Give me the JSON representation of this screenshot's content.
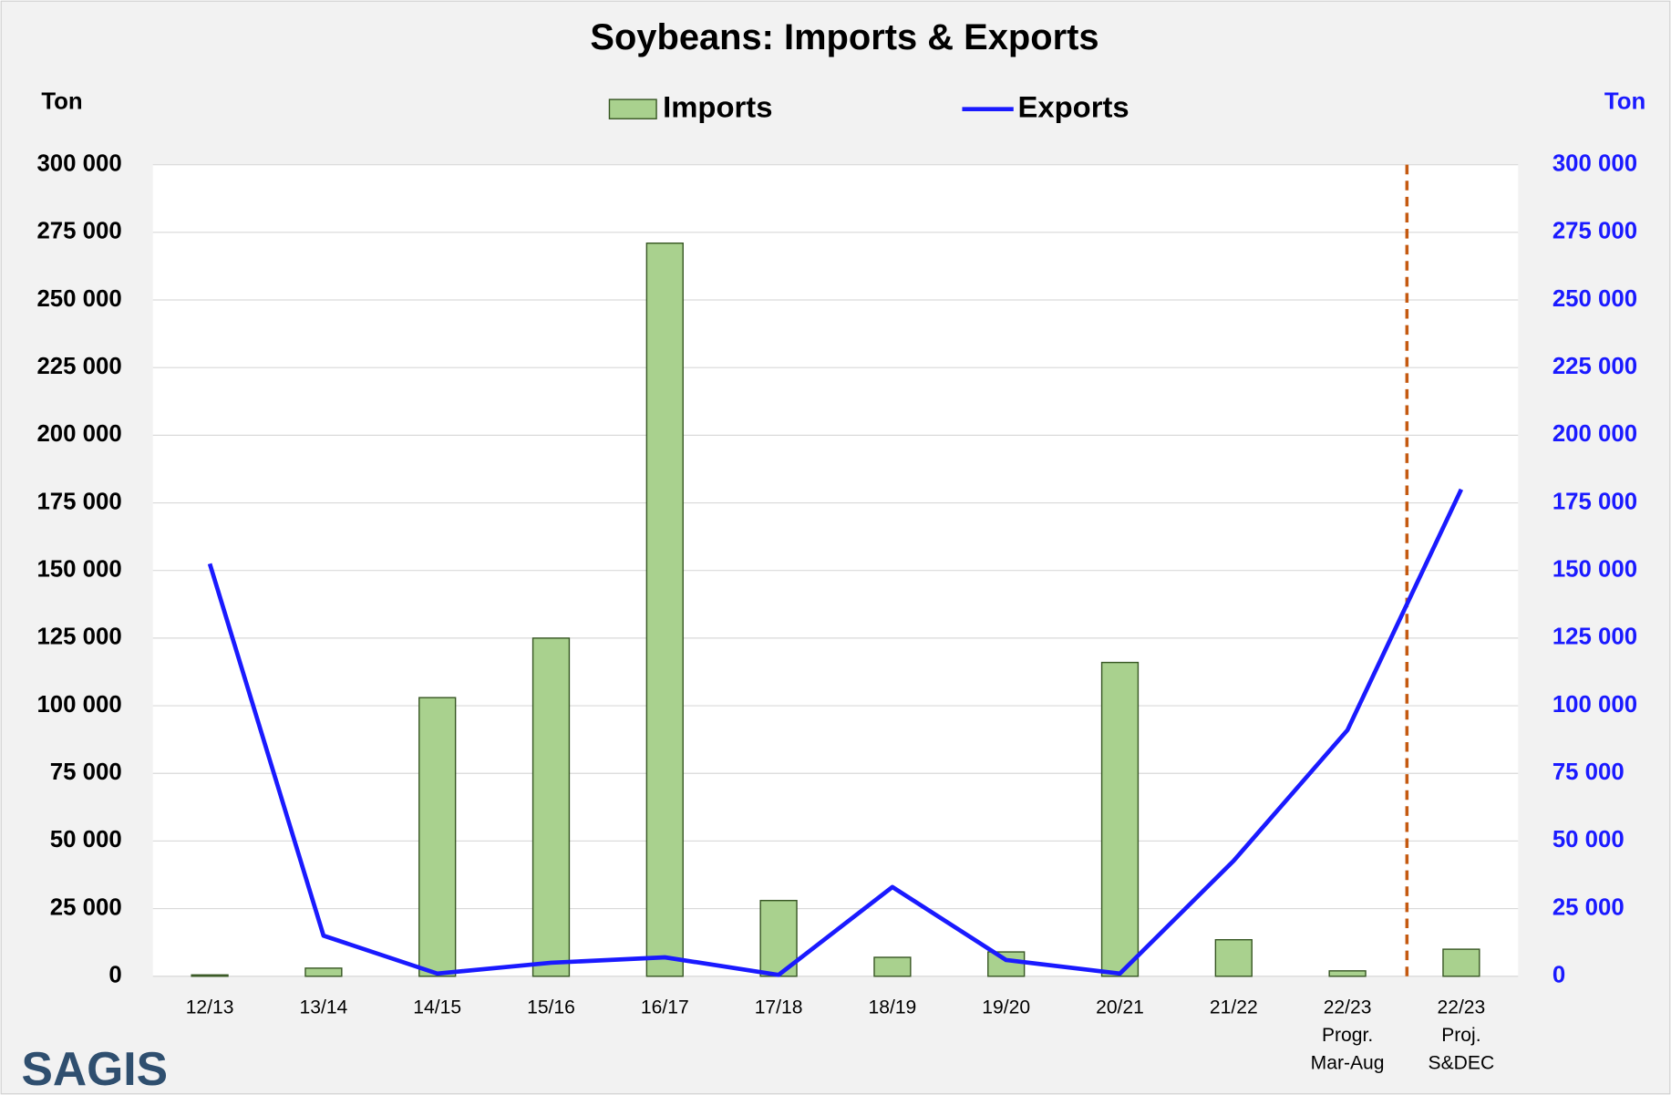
{
  "chart_data": {
    "type": "bar_line",
    "title": "Soybeans: Imports & Exports",
    "ylabel": "Ton",
    "y2label": "Ton",
    "categories": [
      "12/13",
      "13/14",
      "14/15",
      "15/16",
      "16/17",
      "17/18",
      "18/19",
      "19/20",
      "20/21",
      "21/22",
      [
        "22/23",
        "Progr.",
        "Mar-Aug"
      ],
      [
        "22/23",
        "Proj.",
        "S&DEC"
      ]
    ],
    "series": [
      {
        "name": "Imports",
        "type": "bar",
        "color": "#a9d18e",
        "values": [
          500,
          3000,
          103000,
          125000,
          271000,
          28000,
          7000,
          9000,
          116000,
          13500,
          2000,
          10000
        ]
      },
      {
        "name": "Exports",
        "type": "line",
        "axis": "y2",
        "color": "#1a1aff",
        "values": [
          152500,
          15000,
          1000,
          5000,
          7000,
          500,
          33000,
          6000,
          1000,
          42700,
          91000,
          180000
        ]
      }
    ],
    "ylim": [
      0,
      300000
    ],
    "yticks": [
      0,
      {
        "value": 25000,
        "label": "25 000"
      },
      {
        "value": 50000,
        "label": "50 000"
      },
      {
        "value": 75000,
        "label": "75 000"
      },
      {
        "value": 100000,
        "label": "100 000"
      },
      {
        "value": 125000,
        "label": "125 000"
      },
      {
        "value": 150000,
        "label": "150 000"
      },
      {
        "value": 175000,
        "label": "175 000"
      },
      {
        "value": 200000,
        "label": "200 000"
      },
      {
        "value": 225000,
        "label": "225 000"
      },
      {
        "value": 250000,
        "label": "250 000"
      },
      {
        "value": 275000,
        "label": "275 000"
      },
      {
        "value": 300000,
        "label": "300 000"
      }
    ],
    "y2lim": [
      0,
      300000
    ],
    "y2ticks": [
      0,
      {
        "value": 25000,
        "label": "25 000"
      },
      {
        "value": 50000,
        "label": "50 000"
      },
      {
        "value": 75000,
        "label": "75 000"
      },
      {
        "value": 100000,
        "label": "100 000"
      },
      {
        "value": 125000,
        "label": "125 000"
      },
      {
        "value": 150000,
        "label": "150 000"
      },
      {
        "value": 175000,
        "label": "175 000"
      },
      {
        "value": 200000,
        "label": "200 000"
      },
      {
        "value": 225000,
        "label": "225 000"
      },
      {
        "value": 250000,
        "label": "250 000"
      },
      {
        "value": 275000,
        "label": "275 000"
      },
      {
        "value": 300000,
        "label": "300 000"
      }
    ],
    "grid": true,
    "legend": "top",
    "logo": "SAGIS"
  }
}
